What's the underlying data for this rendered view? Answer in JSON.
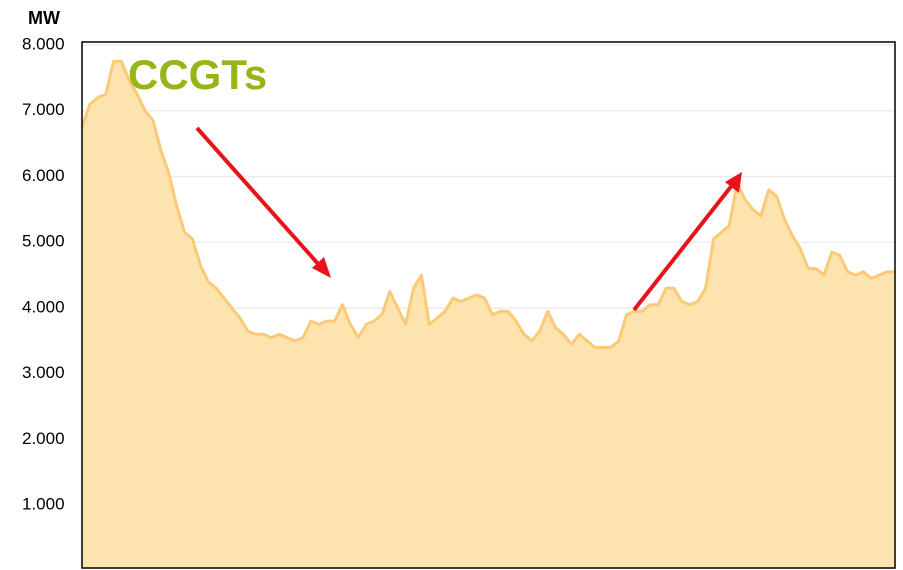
{
  "chart_data": {
    "type": "area",
    "y_label": "MW",
    "annotation": "CCGTs",
    "color": "#fde3ad",
    "line_color": "#fcc977",
    "grid": true,
    "ylim": [
      0,
      8000
    ],
    "yticks": [
      {
        "value": 1000,
        "label": "1.000"
      },
      {
        "value": 2000,
        "label": "2.000"
      },
      {
        "value": 3000,
        "label": "3.000"
      },
      {
        "value": 4000,
        "label": "4.000"
      },
      {
        "value": 5000,
        "label": "5.000"
      },
      {
        "value": 6000,
        "label": "6.000"
      },
      {
        "value": 7000,
        "label": "7.000"
      },
      {
        "value": 8000,
        "label": "8.000"
      }
    ],
    "values": [
      6750,
      7100,
      7200,
      7250,
      7750,
      7750,
      7450,
      7250,
      7000,
      6850,
      6400,
      6050,
      5550,
      5150,
      5050,
      4650,
      4400,
      4300,
      4150,
      4000,
      3850,
      3650,
      3600,
      3600,
      3550,
      3600,
      3550,
      3500,
      3550,
      3800,
      3750,
      3800,
      3800,
      4050,
      3750,
      3550,
      3750,
      3800,
      3900,
      4250,
      4000,
      3750,
      4300,
      4500,
      3750,
      3850,
      3950,
      4150,
      4100,
      4150,
      4200,
      4150,
      3900,
      3950,
      3950,
      3800,
      3600,
      3500,
      3650,
      3950,
      3700,
      3600,
      3450,
      3600,
      3500,
      3400,
      3400,
      3400,
      3500,
      3900,
      3950,
      3950,
      4050,
      4050,
      4300,
      4300,
      4100,
      4050,
      4100,
      4300,
      5050,
      5150,
      5250,
      5900,
      5650,
      5500,
      5400,
      5800,
      5700,
      5350,
      5100,
      4900,
      4600,
      4600,
      4500,
      4850,
      4800,
      4550,
      4500,
      4550,
      4450,
      4500,
      4550,
      4550
    ]
  }
}
